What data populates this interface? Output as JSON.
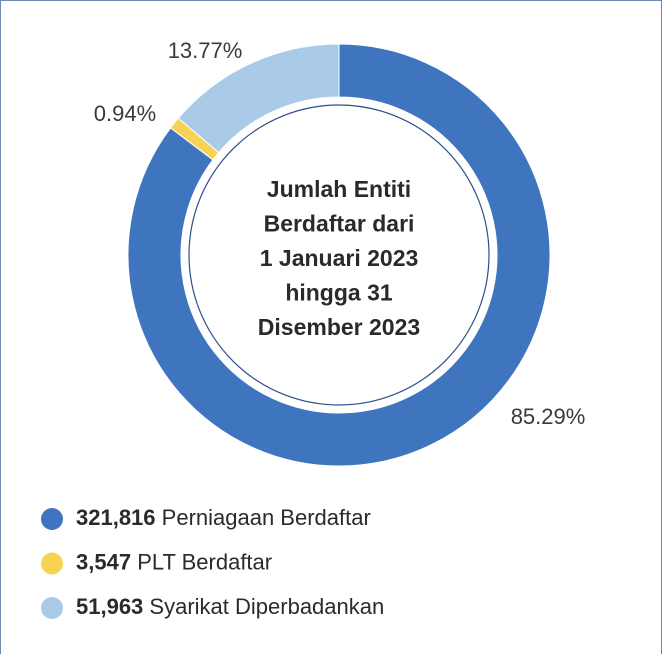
{
  "chart_data": {
    "type": "donut",
    "title": [
      "Jumlah Entiti",
      "Berdaftar dari",
      "1 Januari 2023",
      "hingga 31",
      "Disember 2023"
    ],
    "categories": [
      "Perniagaan Berdaftar",
      "PLT Berdaftar",
      "Syarikat Diperbadankan"
    ],
    "values": [
      321816,
      3547,
      51963
    ],
    "value_labels": [
      "321,816",
      "3,547",
      "51,963"
    ],
    "percentages": [
      85.29,
      0.94,
      13.77
    ],
    "percentage_labels": [
      "85.29%",
      "0.94%",
      "13.77%"
    ],
    "colors": [
      "#3f75be",
      "#f6d352",
      "#a9cbe7"
    ]
  }
}
